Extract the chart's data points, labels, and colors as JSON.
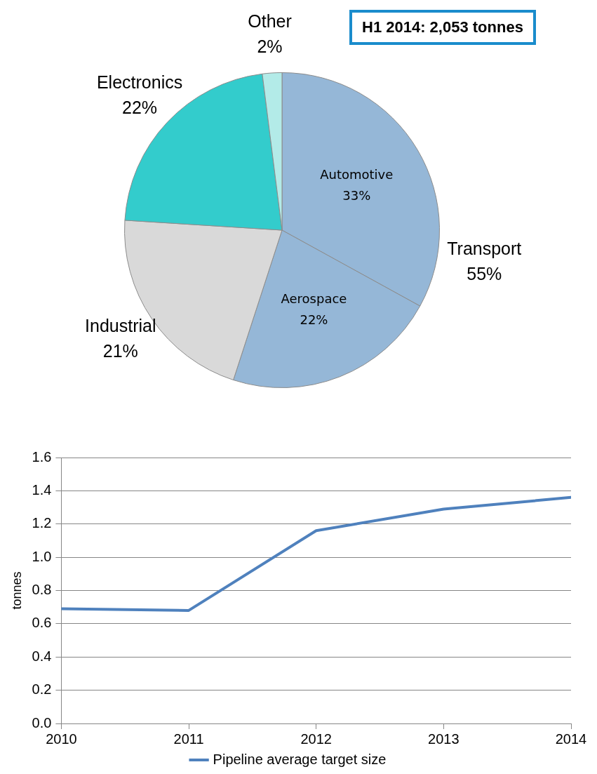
{
  "chart_data": [
    {
      "type": "pie",
      "title": "H1 2014: 2,053 tonnes",
      "categories": [
        "Automotive",
        "Aerospace",
        "Industrial",
        "Electronics",
        "Other"
      ],
      "values": [
        33,
        22,
        21,
        22,
        2
      ],
      "colors": [
        "#95b7d7",
        "#95b7d7",
        "#d9d9d9",
        "#33cccc",
        "#b3ebe8"
      ],
      "value_labels": [
        "33%",
        "22%",
        "21%",
        "22%",
        "2%"
      ],
      "annotations": [
        "Transport\n55%"
      ]
    },
    {
      "type": "line",
      "x": [
        2010,
        2011,
        2012,
        2013,
        2014
      ],
      "series": [
        {
          "name": "Pipeline average target size",
          "color": "#4f81bd",
          "values": [
            0.69,
            0.68,
            1.16,
            1.29,
            1.36
          ]
        }
      ],
      "xlim": [
        2010,
        2014
      ],
      "xticks": [
        2010,
        2011,
        2012,
        2013,
        2014
      ],
      "ylim": [
        0,
        1.6
      ],
      "yticks": [
        {
          "value": 0,
          "label": "0.0"
        },
        0.2,
        0.4,
        0.6,
        0.8,
        {
          "value": 1,
          "label": "1.0"
        },
        1.2,
        1.4,
        1.6
      ],
      "ylabel": "tonnes",
      "grid": "y",
      "legend": "bottom",
      "marker": "none",
      "line_style": "solid"
    }
  ]
}
